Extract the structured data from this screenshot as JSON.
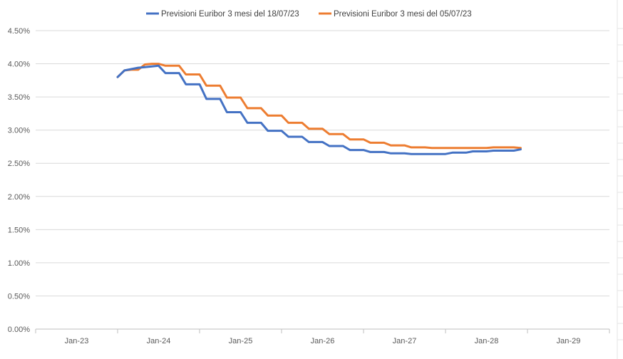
{
  "chart_data": {
    "type": "line",
    "title": "",
    "xlabel": "",
    "ylabel": "",
    "y_tick_labels": [
      "0.00%",
      "0.50%",
      "1.00%",
      "1.50%",
      "2.00%",
      "2.50%",
      "3.00%",
      "3.50%",
      "4.00%",
      "4.50%"
    ],
    "ylim": [
      0,
      4.5
    ],
    "x_tick_labels": [
      "Jan-23",
      "Jan-24",
      "Jan-25",
      "Jan-26",
      "Jan-27",
      "Jan-28",
      "Jan-29"
    ],
    "x_tick_dates": [
      "2023-01",
      "2024-01",
      "2025-01",
      "2026-01",
      "2027-01",
      "2028-01",
      "2029-01"
    ],
    "xlim": [
      "2022-07",
      "2029-07"
    ],
    "grid": true,
    "legend_position": "top",
    "series": [
      {
        "name": "Previsioni Euribor 3 mesi del 18/07/23",
        "color": "#4472C4",
        "x": [
          "2023-07",
          "2023-08",
          "2023-09",
          "2023-10",
          "2023-11",
          "2023-12",
          "2024-01",
          "2024-02",
          "2024-03",
          "2024-04",
          "2024-05",
          "2024-06",
          "2024-07",
          "2024-08",
          "2024-09",
          "2024-10",
          "2024-11",
          "2024-12",
          "2025-01",
          "2025-02",
          "2025-03",
          "2025-04",
          "2025-05",
          "2025-06",
          "2025-07",
          "2025-08",
          "2025-09",
          "2025-10",
          "2025-11",
          "2025-12",
          "2026-01",
          "2026-02",
          "2026-03",
          "2026-04",
          "2026-05",
          "2026-06",
          "2026-07",
          "2026-08",
          "2026-09",
          "2026-10",
          "2026-11",
          "2026-12",
          "2027-01",
          "2027-02",
          "2027-03",
          "2027-04",
          "2027-05",
          "2027-06",
          "2027-07",
          "2027-08",
          "2027-09",
          "2027-10",
          "2027-11",
          "2027-12",
          "2028-01",
          "2028-02",
          "2028-03",
          "2028-04",
          "2028-05",
          "2028-06"
        ],
        "values": [
          3.8,
          3.9,
          3.92,
          3.94,
          3.95,
          3.96,
          3.97,
          3.86,
          3.86,
          3.86,
          3.69,
          3.69,
          3.69,
          3.47,
          3.47,
          3.47,
          3.27,
          3.27,
          3.27,
          3.11,
          3.11,
          3.11,
          2.99,
          2.99,
          2.99,
          2.9,
          2.9,
          2.9,
          2.82,
          2.82,
          2.82,
          2.76,
          2.76,
          2.76,
          2.7,
          2.7,
          2.7,
          2.67,
          2.67,
          2.67,
          2.65,
          2.65,
          2.65,
          2.64,
          2.64,
          2.64,
          2.64,
          2.64,
          2.64,
          2.66,
          2.66,
          2.66,
          2.68,
          2.68,
          2.68,
          2.69,
          2.69,
          2.69,
          2.69,
          2.71
        ]
      },
      {
        "name": "Previsioni Euribor 3 mesi del 05/07/23",
        "color": "#ED7D31",
        "x": [
          "2023-07",
          "2023-08",
          "2023-09",
          "2023-10",
          "2023-11",
          "2023-12",
          "2024-01",
          "2024-02",
          "2024-03",
          "2024-04",
          "2024-05",
          "2024-06",
          "2024-07",
          "2024-08",
          "2024-09",
          "2024-10",
          "2024-11",
          "2024-12",
          "2025-01",
          "2025-02",
          "2025-03",
          "2025-04",
          "2025-05",
          "2025-06",
          "2025-07",
          "2025-08",
          "2025-09",
          "2025-10",
          "2025-11",
          "2025-12",
          "2026-01",
          "2026-02",
          "2026-03",
          "2026-04",
          "2026-05",
          "2026-06",
          "2026-07",
          "2026-08",
          "2026-09",
          "2026-10",
          "2026-11",
          "2026-12",
          "2027-01",
          "2027-02",
          "2027-03",
          "2027-04",
          "2027-05",
          "2027-06",
          "2027-07",
          "2027-08",
          "2027-09",
          "2027-10",
          "2027-11",
          "2027-12",
          "2028-01",
          "2028-02",
          "2028-03",
          "2028-04",
          "2028-05",
          "2028-06"
        ],
        "values": [
          3.8,
          3.9,
          3.91,
          3.91,
          3.99,
          4.0,
          4.0,
          3.97,
          3.97,
          3.97,
          3.84,
          3.84,
          3.84,
          3.67,
          3.67,
          3.67,
          3.49,
          3.49,
          3.49,
          3.33,
          3.33,
          3.33,
          3.22,
          3.22,
          3.22,
          3.11,
          3.11,
          3.11,
          3.02,
          3.02,
          3.02,
          2.94,
          2.94,
          2.94,
          2.86,
          2.86,
          2.86,
          2.81,
          2.81,
          2.81,
          2.77,
          2.77,
          2.77,
          2.74,
          2.74,
          2.74,
          2.73,
          2.73,
          2.73,
          2.73,
          2.73,
          2.73,
          2.73,
          2.73,
          2.73,
          2.74,
          2.74,
          2.74,
          2.74,
          2.73
        ]
      }
    ]
  }
}
